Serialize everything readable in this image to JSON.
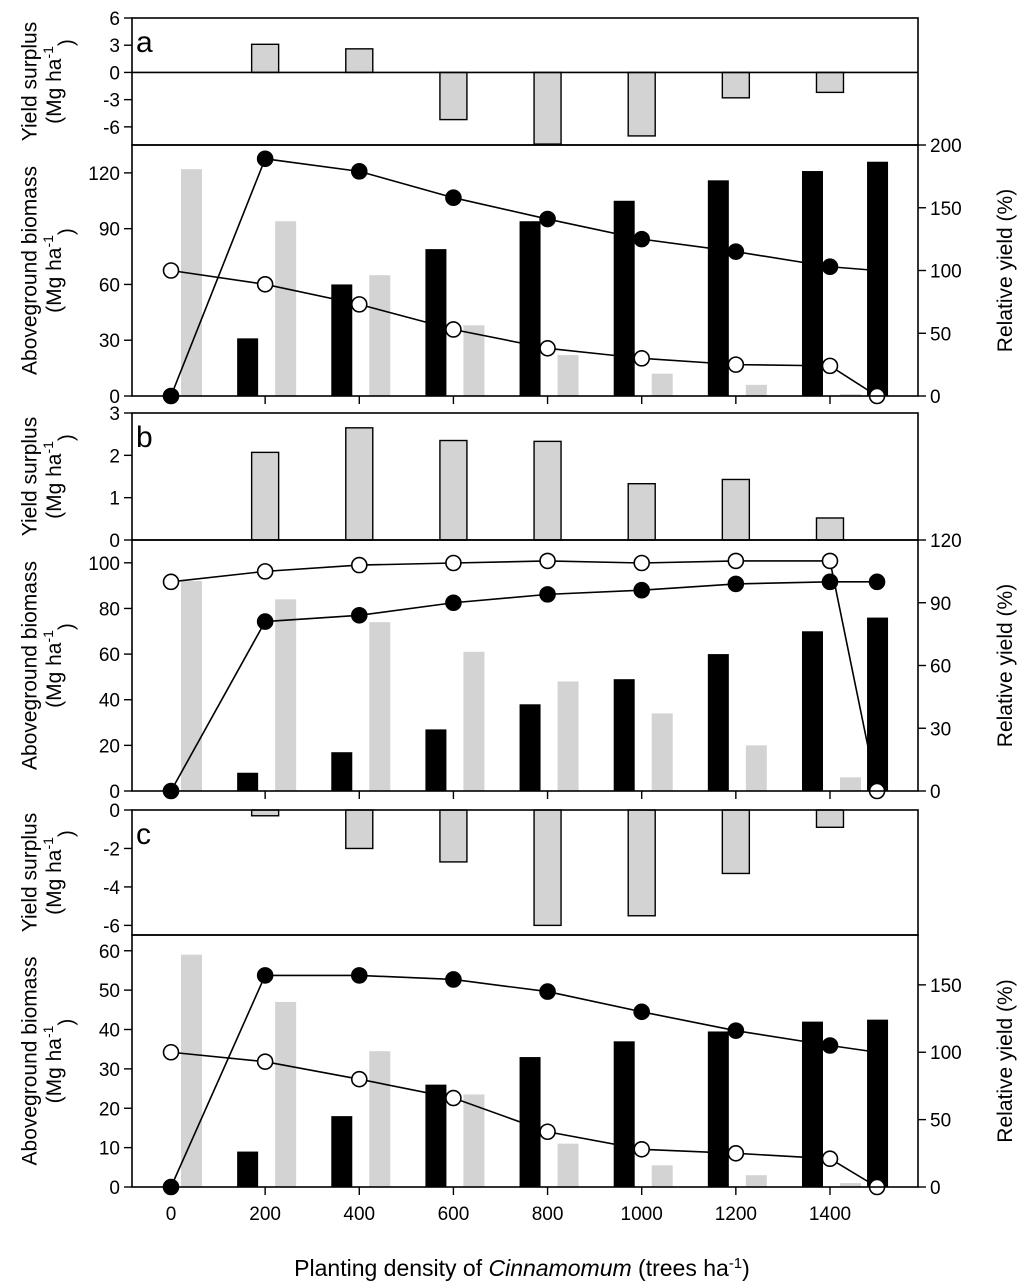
{
  "x_axis": {
    "label": "Planting density of ",
    "label_italic": "Cinnamomum",
    "label_unit": " (trees ha",
    "label_sup": "-1",
    "label_close": ")",
    "ticks": [
      0,
      200,
      400,
      600,
      800,
      1000,
      1200,
      1400
    ]
  },
  "colors": {
    "tree_bar": "#000000",
    "crop_bar": "#d3d3d3",
    "surplus_bar": "#d3d3d3",
    "axis": "#000000"
  },
  "chart_data": [
    {
      "panel": "a",
      "type": "bar",
      "subplot": "yield-surplus",
      "ylabel": "Yield surplus",
      "ylabel_unit": "(Mg ha",
      "ylabel_sup": "-1",
      "ylim": [
        -8,
        6
      ],
      "yticks": [
        6,
        3,
        0,
        -3,
        -6
      ],
      "x": [
        200,
        400,
        600,
        800,
        1000,
        1200,
        1400
      ],
      "values": [
        3.1,
        2.6,
        -5.2,
        -7.9,
        -7.0,
        -2.8,
        -2.2
      ]
    },
    {
      "panel": "a",
      "type": "bar+line",
      "subplot": "biomass",
      "ylabel": "Aboveground biomass",
      "ylabel_unit": "(Mg ha",
      "ylabel_sup": "-1",
      "ylim": [
        0,
        135
      ],
      "yticks": [
        0,
        30,
        60,
        90,
        120
      ],
      "y2label": "Relative yield (%)",
      "y2lim": [
        0,
        200
      ],
      "y2ticks": [
        0,
        50,
        100,
        150,
        200
      ],
      "tree_biomass": {
        "x": [
          200,
          400,
          600,
          800,
          1000,
          1200,
          1400,
          1500
        ],
        "values": [
          31,
          60,
          79,
          94,
          105,
          116,
          121,
          126
        ]
      },
      "crop_biomass": {
        "x": [
          0,
          200,
          400,
          600,
          800,
          1000,
          1200,
          1400
        ],
        "values": [
          122,
          94,
          65,
          38,
          22,
          12,
          6,
          1
        ]
      },
      "tree_relative_yield": {
        "x": [
          0,
          200,
          400,
          600,
          800,
          1000,
          1200,
          1400,
          1500
        ],
        "values": [
          0,
          189,
          179,
          158,
          141,
          125,
          115,
          103,
          100
        ]
      },
      "crop_relative_yield": {
        "x": [
          0,
          200,
          400,
          600,
          800,
          1000,
          1200,
          1400,
          1500
        ],
        "values": [
          100,
          89,
          73,
          53,
          38,
          30,
          25,
          24,
          0
        ]
      }
    },
    {
      "panel": "b",
      "type": "bar",
      "subplot": "yield-surplus",
      "ylabel": "Yield surplus",
      "ylabel_unit": "(Mg ha",
      "ylabel_sup": "-1",
      "ylim": [
        0,
        3
      ],
      "yticks": [
        3,
        2,
        1,
        0
      ],
      "x": [
        200,
        400,
        600,
        800,
        1000,
        1200,
        1400
      ],
      "values": [
        2.07,
        2.65,
        2.35,
        2.33,
        1.33,
        1.43,
        0.52
      ]
    },
    {
      "panel": "b",
      "type": "bar+line",
      "subplot": "biomass",
      "ylabel": "Aboveground biomass",
      "ylabel_unit": "(Mg ha",
      "ylabel_sup": "-1",
      "ylim": [
        0,
        110
      ],
      "yticks": [
        0,
        20,
        40,
        60,
        80,
        100
      ],
      "y2label": "Relative yield (%)",
      "y2lim": [
        0,
        120
      ],
      "y2ticks": [
        0,
        30,
        60,
        90,
        120
      ],
      "tree_biomass": {
        "x": [
          200,
          400,
          600,
          800,
          1000,
          1200,
          1400,
          1500
        ],
        "values": [
          8,
          17,
          27,
          38,
          49,
          60,
          70,
          76
        ]
      },
      "crop_biomass": {
        "x": [
          0,
          200,
          400,
          600,
          800,
          1000,
          1200,
          1400
        ],
        "values": [
          92,
          84,
          74,
          61,
          48,
          34,
          20,
          6
        ]
      },
      "tree_relative_yield": {
        "x": [
          0,
          200,
          400,
          600,
          800,
          1000,
          1200,
          1400,
          1500
        ],
        "values": [
          0,
          81,
          84,
          90,
          94,
          96,
          99,
          100,
          100
        ]
      },
      "crop_relative_yield": {
        "x": [
          0,
          200,
          400,
          600,
          800,
          1000,
          1200,
          1400,
          1500
        ],
        "values": [
          100,
          105,
          108,
          109,
          110,
          109,
          110,
          110,
          0
        ]
      }
    },
    {
      "panel": "c",
      "type": "bar",
      "subplot": "yield-surplus",
      "ylabel": "Yield surplus",
      "ylabel_unit": "(Mg ha",
      "ylabel_sup": "-1",
      "ylim": [
        -6.5,
        0
      ],
      "yticks": [
        0,
        -2,
        -4,
        -6
      ],
      "x": [
        200,
        400,
        600,
        800,
        1000,
        1200,
        1400
      ],
      "values": [
        -0.3,
        -2.0,
        -2.7,
        -6.0,
        -5.5,
        -3.3,
        -0.9
      ]
    },
    {
      "panel": "c",
      "type": "bar+line",
      "subplot": "biomass",
      "ylabel": "Aboveground biomass",
      "ylabel_unit": "(Mg ha",
      "ylabel_sup": "-1",
      "ylim": [
        0,
        64
      ],
      "yticks": [
        0,
        10,
        20,
        30,
        40,
        50,
        60
      ],
      "y2label": "Relative yield (%)",
      "y2lim": [
        0,
        187
      ],
      "y2ticks": [
        0,
        50,
        100,
        150
      ],
      "tree_biomass": {
        "x": [
          200,
          400,
          600,
          800,
          1000,
          1200,
          1400,
          1500
        ],
        "values": [
          9,
          18,
          26,
          33,
          37,
          39.5,
          42,
          42.5
        ]
      },
      "crop_biomass": {
        "x": [
          0,
          200,
          400,
          600,
          800,
          1000,
          1200,
          1400
        ],
        "values": [
          59,
          47,
          34.5,
          23.5,
          11,
          5.5,
          3,
          1
        ]
      },
      "tree_relative_yield": {
        "x": [
          0,
          200,
          400,
          600,
          800,
          1000,
          1200,
          1400,
          1500
        ],
        "values": [
          0,
          157,
          157,
          154,
          145,
          130,
          116,
          105,
          100
        ]
      },
      "crop_relative_yield": {
        "x": [
          0,
          200,
          400,
          600,
          800,
          1000,
          1200,
          1400,
          1500
        ],
        "values": [
          100,
          93,
          80,
          66,
          41,
          28,
          25,
          21,
          0
        ]
      }
    }
  ]
}
